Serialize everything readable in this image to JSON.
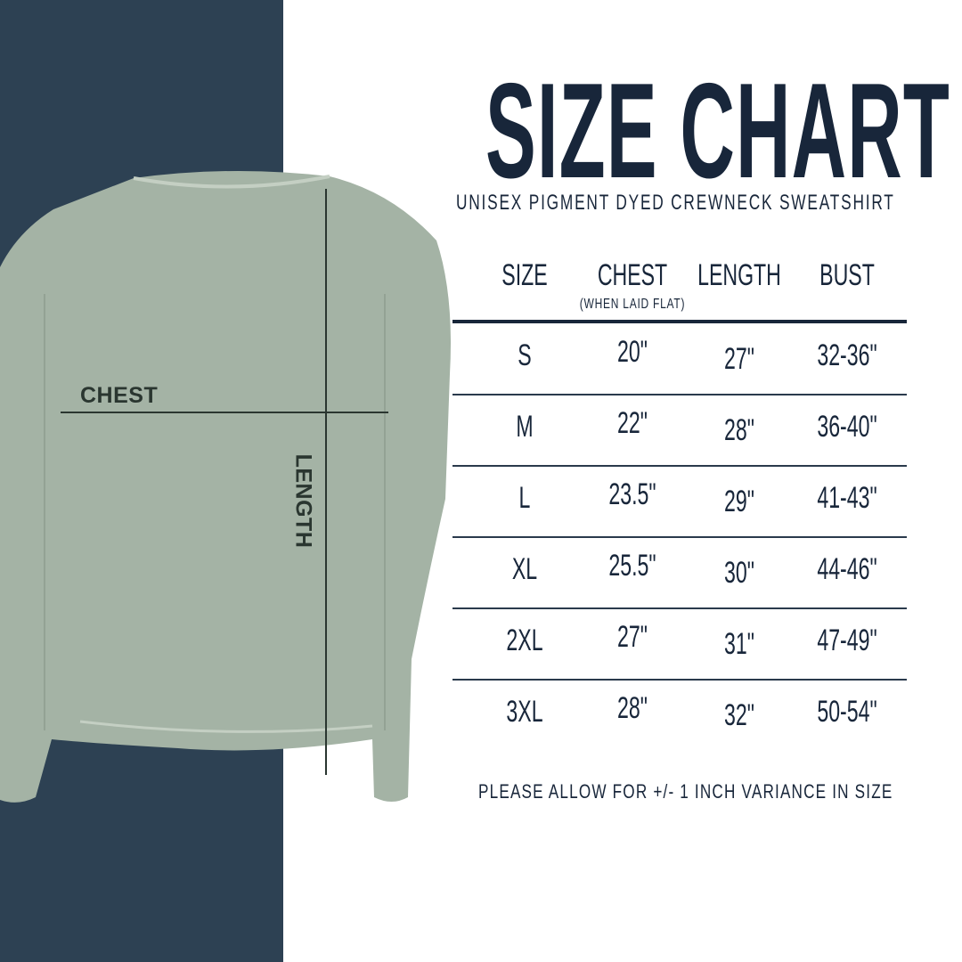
{
  "title": "SIZE CHART",
  "subtitle": "UNISEX PIGMENT DYED CREWNECK SWEATSHIRT",
  "colors": {
    "panel": "#2d4153",
    "text": "#18263a",
    "garment": "#a4b3a5"
  },
  "garment_labels": {
    "chest": "CHEST",
    "length": "LENGTH"
  },
  "table": {
    "headers": [
      "SIZE",
      "CHEST",
      "LENGTH",
      "BUST"
    ],
    "chest_note": "(WHEN LAID FLAT)",
    "rows": [
      [
        "S",
        "20\"",
        "27\"",
        "32-36\""
      ],
      [
        "M",
        "22\"",
        "28\"",
        "36-40\""
      ],
      [
        "L",
        "23.5\"",
        "29\"",
        "41-43\""
      ],
      [
        "XL",
        "25.5\"",
        "30\"",
        "44-46\""
      ],
      [
        "2XL",
        "27\"",
        "31\"",
        "47-49\""
      ],
      [
        "3XL",
        "28\"",
        "32\"",
        "50-54\""
      ]
    ]
  },
  "note": "PLEASE ALLOW FOR +/- 1 INCH VARIANCE IN SIZE"
}
